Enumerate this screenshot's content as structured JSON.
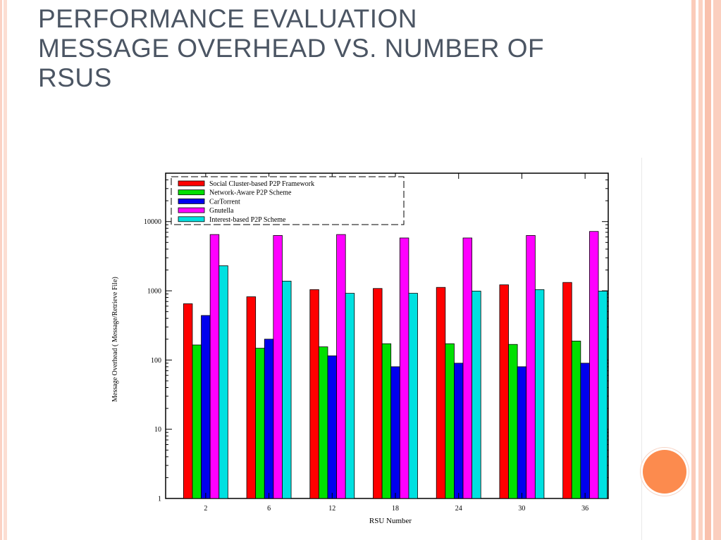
{
  "slide": {
    "title_lines": [
      "PERFORMANCE EVALUATION",
      "MESSAGE OVERHEAD VS. NUMBER OF",
      "RSUS"
    ]
  },
  "chart_data": {
    "type": "bar",
    "title": "",
    "xlabel": "RSU Number",
    "ylabel": "Message Overhead ( Message/Retrieve File)",
    "yscale": "log",
    "ylim": [
      1,
      50000
    ],
    "yticks": [
      1,
      10,
      100,
      1000,
      10000
    ],
    "ytick_labels": [
      "1",
      "10",
      "100",
      "1000",
      "10000"
    ],
    "categories": [
      "2",
      "6",
      "12",
      "18",
      "24",
      "30",
      "36"
    ],
    "legend_position": "top-left",
    "series": [
      {
        "name": "Social Cluster-based P2P Framework",
        "color": "#ff0000",
        "values": [
          650,
          820,
          1040,
          1080,
          1120,
          1220,
          1320
        ]
      },
      {
        "name": "Network-Aware P2P Scheme",
        "color": "#00e000",
        "values": [
          165,
          148,
          155,
          172,
          172,
          168,
          188
        ]
      },
      {
        "name": "CarTorrent",
        "color": "#0000ee",
        "values": [
          440,
          200,
          115,
          80,
          90,
          80,
          90
        ]
      },
      {
        "name": "Gnutella",
        "color": "#ff00ff",
        "values": [
          6500,
          6300,
          6500,
          5800,
          5800,
          6300,
          7200
        ]
      },
      {
        "name": "Interest-based P2P Scheme",
        "color": "#00e0e0",
        "values": [
          2300,
          1380,
          920,
          920,
          990,
          1040,
          990
        ]
      }
    ]
  }
}
